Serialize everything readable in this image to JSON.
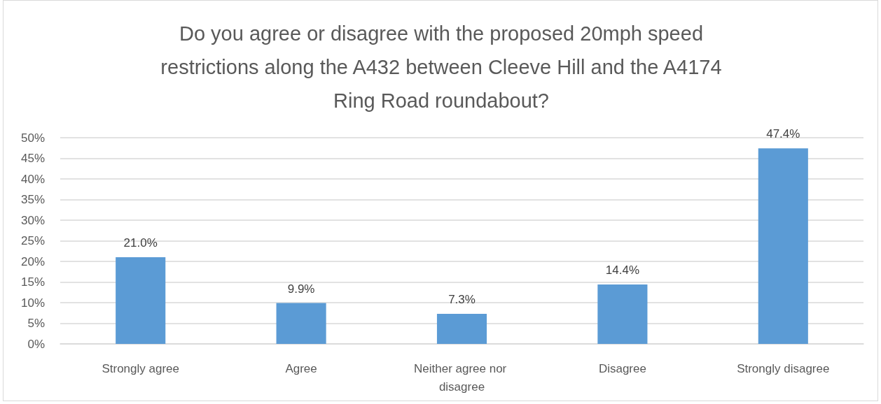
{
  "chart_data": {
    "type": "bar",
    "title": "Do you agree or disagree with the proposed 20mph speed restrictions along the A432 between Cleeve Hill and the A4174 Ring Road roundabout?",
    "categories": [
      "Strongly agree",
      "Agree",
      "Neither agree nor disagree",
      "Disagree",
      "Strongly disagree"
    ],
    "values": [
      21.0,
      9.9,
      7.3,
      14.4,
      47.4
    ],
    "value_labels": [
      "21.0%",
      "9.9%",
      "7.3%",
      "14.4%",
      "47.4%"
    ],
    "color": "#5b9bd5",
    "ylim": [
      0,
      50
    ],
    "yticks": [
      {
        "value": 0,
        "label": "0%"
      },
      {
        "value": 5,
        "label": "5%"
      },
      {
        "value": 10,
        "label": "10%"
      },
      {
        "value": 15,
        "label": "15%"
      },
      {
        "value": 20,
        "label": "20%"
      },
      {
        "value": 25,
        "label": "25%"
      },
      {
        "value": 30,
        "label": "30%"
      },
      {
        "value": 35,
        "label": "35%"
      },
      {
        "value": 40,
        "label": "40%"
      },
      {
        "value": 45,
        "label": "45%"
      },
      {
        "value": 50,
        "label": "50%"
      }
    ],
    "grid": "y"
  }
}
